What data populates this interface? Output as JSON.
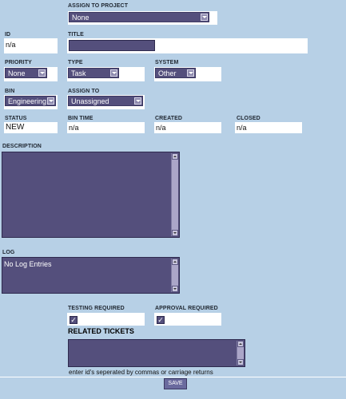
{
  "assign_to_project": {
    "label": "ASSIGN TO PROJECT",
    "value": "None"
  },
  "id": {
    "label": "ID",
    "value": "n/a"
  },
  "title": {
    "label": "TITLE",
    "value": ""
  },
  "priority": {
    "label": "PRIORITY",
    "value": "None"
  },
  "type": {
    "label": "TYPE",
    "value": "Task"
  },
  "system": {
    "label": "SYSTEM",
    "value": "Other"
  },
  "bin": {
    "label": "BIN",
    "value": "Engineering"
  },
  "assign_to": {
    "label": "ASSIGN TO",
    "value": "Unassigned"
  },
  "status": {
    "label": "STATUS",
    "value": "NEW"
  },
  "bin_time": {
    "label": "BIN TIME",
    "value": "n/a"
  },
  "created": {
    "label": "CREATED",
    "value": "n/a"
  },
  "closed": {
    "label": "CLOSED",
    "value": "n/a"
  },
  "description": {
    "label": "DESCRIPTION",
    "value": ""
  },
  "log": {
    "label": "LOG",
    "value": "No Log Entries"
  },
  "testing_required": {
    "label": "TESTING REQUIRED",
    "checked": true
  },
  "approval_required": {
    "label": "APPROVAL REQUIRED",
    "checked": true
  },
  "related_tickets": {
    "label": "RELATED TICKETS",
    "value": "",
    "hint": "enter id's seperated by commas or carriage returns"
  },
  "save_label": "SAVE",
  "colors": {
    "background": "#b7d0e6",
    "control": "#544f7c",
    "button": "#6a6a9e"
  }
}
